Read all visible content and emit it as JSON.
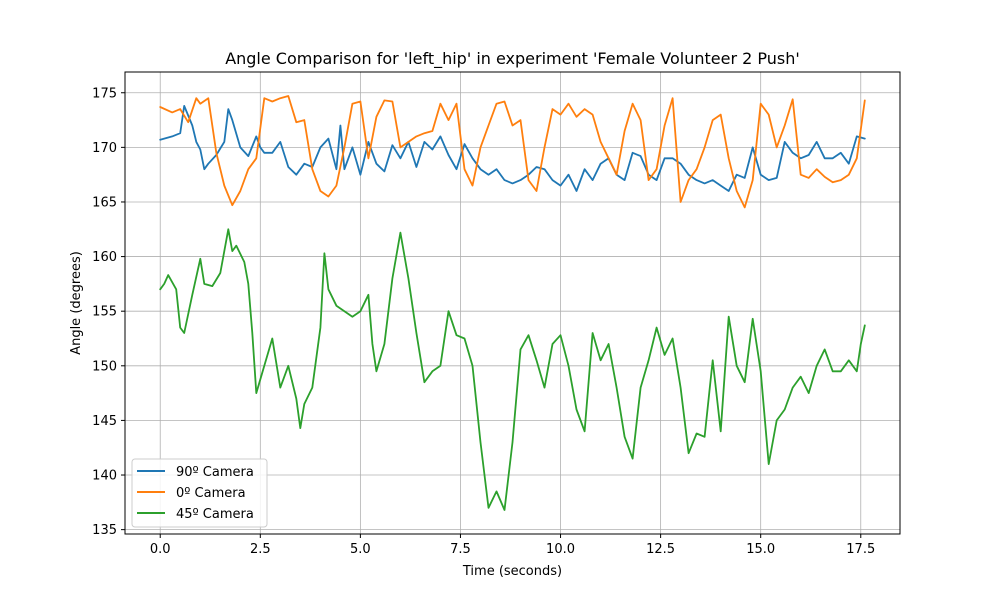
{
  "chart_data": {
    "type": "line",
    "title": "Angle Comparison for 'left_hip' in experiment 'Female Volunteer 2 Push'",
    "xlabel": "Time (seconds)",
    "ylabel": "Angle (degrees)",
    "xlim": [
      -0.88,
      18.48
    ],
    "ylim": [
      134.6,
      176.9
    ],
    "xticks": [
      0.0,
      2.5,
      5.0,
      7.5,
      10.0,
      12.5,
      15.0,
      17.5
    ],
    "xtick_labels": [
      "0.0",
      "2.5",
      "5.0",
      "7.5",
      "10.0",
      "12.5",
      "15.0",
      "17.5"
    ],
    "yticks": [
      135,
      140,
      145,
      150,
      155,
      160,
      165,
      170,
      175
    ],
    "ytick_labels": [
      "135",
      "140",
      "145",
      "150",
      "155",
      "160",
      "165",
      "170",
      "175"
    ],
    "grid": true,
    "legend_position": "lower-left",
    "series": [
      {
        "name": "90º Camera",
        "color": "#1f77b4",
        "x": [
          0.0,
          0.3,
          0.5,
          0.6,
          0.8,
          0.9,
          1.0,
          1.1,
          1.2,
          1.4,
          1.6,
          1.7,
          1.8,
          2.0,
          2.2,
          2.4,
          2.5,
          2.6,
          2.8,
          3.0,
          3.2,
          3.4,
          3.6,
          3.8,
          4.0,
          4.2,
          4.4,
          4.5,
          4.6,
          4.8,
          5.0,
          5.2,
          5.4,
          5.6,
          5.8,
          6.0,
          6.2,
          6.4,
          6.6,
          6.8,
          7.0,
          7.2,
          7.4,
          7.6,
          7.8,
          8.0,
          8.2,
          8.4,
          8.6,
          8.8,
          9.0,
          9.2,
          9.4,
          9.6,
          9.8,
          10.0,
          10.2,
          10.4,
          10.6,
          10.8,
          11.0,
          11.2,
          11.4,
          11.6,
          11.8,
          12.0,
          12.2,
          12.4,
          12.6,
          12.8,
          13.0,
          13.2,
          13.4,
          13.6,
          13.8,
          14.0,
          14.2,
          14.4,
          14.6,
          14.8,
          15.0,
          15.2,
          15.4,
          15.6,
          15.8,
          16.0,
          16.2,
          16.4,
          16.6,
          16.8,
          17.0,
          17.2,
          17.4,
          17.6
        ],
        "y": [
          170.7,
          171.0,
          171.3,
          173.8,
          172.0,
          170.5,
          169.8,
          168.0,
          168.5,
          169.3,
          170.5,
          173.5,
          172.5,
          170.0,
          169.2,
          171.0,
          170.0,
          169.5,
          169.5,
          170.5,
          168.2,
          167.5,
          168.5,
          168.2,
          170.0,
          170.8,
          168.0,
          172.0,
          168.0,
          170.0,
          167.5,
          170.5,
          168.5,
          167.8,
          170.2,
          169.0,
          170.5,
          168.2,
          170.5,
          169.8,
          171.0,
          169.3,
          168.0,
          170.3,
          169.0,
          168.0,
          167.5,
          168.0,
          167.0,
          166.7,
          167.0,
          167.5,
          168.2,
          168.0,
          167.0,
          166.5,
          167.5,
          166.0,
          168.0,
          167.0,
          168.5,
          169.0,
          167.5,
          167.0,
          169.5,
          169.2,
          167.5,
          167.0,
          169.0,
          169.0,
          168.5,
          167.5,
          167.0,
          166.7,
          167.0,
          166.5,
          166.0,
          167.5,
          167.2,
          170.0,
          167.5,
          167.0,
          167.2,
          170.5,
          169.5,
          169.0,
          169.3,
          170.5,
          169.0,
          169.0,
          169.5,
          168.5,
          171.0,
          170.8
        ]
      },
      {
        "name": "0º Camera",
        "color": "#ff7f0e",
        "x": [
          0.0,
          0.3,
          0.5,
          0.7,
          0.9,
          1.0,
          1.2,
          1.4,
          1.6,
          1.8,
          2.0,
          2.2,
          2.4,
          2.6,
          2.8,
          3.0,
          3.2,
          3.4,
          3.6,
          3.8,
          4.0,
          4.2,
          4.4,
          4.6,
          4.8,
          5.0,
          5.2,
          5.4,
          5.6,
          5.8,
          6.0,
          6.2,
          6.4,
          6.6,
          6.8,
          7.0,
          7.2,
          7.4,
          7.6,
          7.8,
          8.0,
          8.2,
          8.4,
          8.6,
          8.8,
          9.0,
          9.2,
          9.4,
          9.6,
          9.8,
          10.0,
          10.2,
          10.4,
          10.6,
          10.8,
          11.0,
          11.2,
          11.4,
          11.6,
          11.8,
          12.0,
          12.2,
          12.4,
          12.6,
          12.8,
          13.0,
          13.2,
          13.4,
          13.6,
          13.8,
          14.0,
          14.2,
          14.4,
          14.6,
          14.8,
          15.0,
          15.2,
          15.4,
          15.6,
          15.8,
          16.0,
          16.2,
          16.4,
          16.6,
          16.8,
          17.0,
          17.2,
          17.4,
          17.6
        ],
        "y": [
          173.7,
          173.2,
          173.5,
          172.3,
          174.5,
          174.0,
          174.5,
          169.5,
          166.5,
          164.7,
          166.0,
          168.0,
          169.0,
          174.5,
          174.2,
          174.5,
          174.7,
          172.3,
          172.5,
          168.0,
          166.0,
          165.5,
          166.5,
          170.0,
          174.0,
          174.2,
          169.0,
          172.8,
          174.3,
          174.2,
          170.0,
          170.5,
          171.0,
          171.3,
          171.5,
          174.0,
          172.5,
          174.0,
          168.0,
          166.5,
          170.0,
          172.0,
          174.0,
          174.2,
          172.0,
          172.5,
          167.0,
          166.0,
          170.0,
          173.5,
          173.0,
          174.0,
          172.8,
          173.5,
          173.0,
          170.5,
          169.0,
          167.5,
          171.5,
          174.0,
          172.5,
          167.0,
          168.0,
          172.0,
          174.5,
          165.0,
          167.0,
          168.0,
          170.0,
          172.5,
          173.0,
          169.0,
          166.0,
          164.5,
          167.0,
          174.0,
          173.0,
          170.0,
          172.0,
          174.4,
          167.5,
          167.2,
          168.0,
          167.3,
          166.8,
          167.0,
          167.5,
          169.0,
          174.3
        ]
      },
      {
        "name": "45º Camera",
        "color": "#2ca02c",
        "x": [
          0.0,
          0.1,
          0.2,
          0.4,
          0.5,
          0.6,
          0.8,
          1.0,
          1.1,
          1.3,
          1.5,
          1.7,
          1.8,
          1.9,
          2.1,
          2.2,
          2.3,
          2.4,
          2.6,
          2.8,
          3.0,
          3.2,
          3.4,
          3.5,
          3.6,
          3.8,
          4.0,
          4.1,
          4.2,
          4.4,
          4.6,
          4.8,
          5.0,
          5.2,
          5.3,
          5.4,
          5.6,
          5.8,
          6.0,
          6.2,
          6.4,
          6.6,
          6.8,
          7.0,
          7.2,
          7.4,
          7.6,
          7.8,
          8.0,
          8.2,
          8.4,
          8.6,
          8.8,
          9.0,
          9.2,
          9.4,
          9.6,
          9.8,
          10.0,
          10.2,
          10.4,
          10.6,
          10.8,
          11.0,
          11.2,
          11.4,
          11.6,
          11.8,
          12.0,
          12.2,
          12.4,
          12.6,
          12.8,
          13.0,
          13.2,
          13.4,
          13.6,
          13.8,
          14.0,
          14.2,
          14.4,
          14.6,
          14.8,
          15.0,
          15.2,
          15.4,
          15.6,
          15.8,
          16.0,
          16.2,
          16.4,
          16.6,
          16.8,
          17.0,
          17.2,
          17.4,
          17.5,
          17.6
        ],
        "y": [
          157.0,
          157.5,
          158.3,
          157.0,
          153.5,
          153.0,
          156.5,
          159.8,
          157.5,
          157.3,
          158.5,
          162.5,
          160.5,
          161.0,
          159.5,
          157.5,
          153.0,
          147.5,
          150.0,
          152.5,
          148.0,
          150.0,
          147.0,
          144.3,
          146.5,
          148.0,
          153.5,
          160.3,
          157.0,
          155.5,
          155.0,
          154.5,
          155.0,
          156.5,
          152.0,
          149.5,
          152.0,
          158.0,
          162.2,
          158.0,
          153.0,
          148.5,
          149.5,
          150.0,
          155.0,
          152.8,
          152.5,
          150.0,
          143.0,
          137.0,
          138.5,
          136.8,
          143.0,
          151.5,
          152.8,
          150.5,
          148.0,
          152.0,
          152.8,
          150.0,
          146.0,
          144.0,
          153.0,
          150.5,
          152.0,
          148.0,
          143.5,
          141.5,
          148.0,
          150.5,
          153.5,
          151.0,
          152.5,
          148.0,
          142.0,
          143.8,
          143.5,
          150.5,
          144.0,
          154.5,
          150.0,
          148.5,
          154.3,
          149.5,
          141.0,
          145.0,
          146.0,
          148.0,
          149.0,
          147.5,
          150.0,
          151.5,
          149.5,
          149.5,
          150.5,
          149.5,
          152.0,
          153.7
        ]
      }
    ]
  }
}
